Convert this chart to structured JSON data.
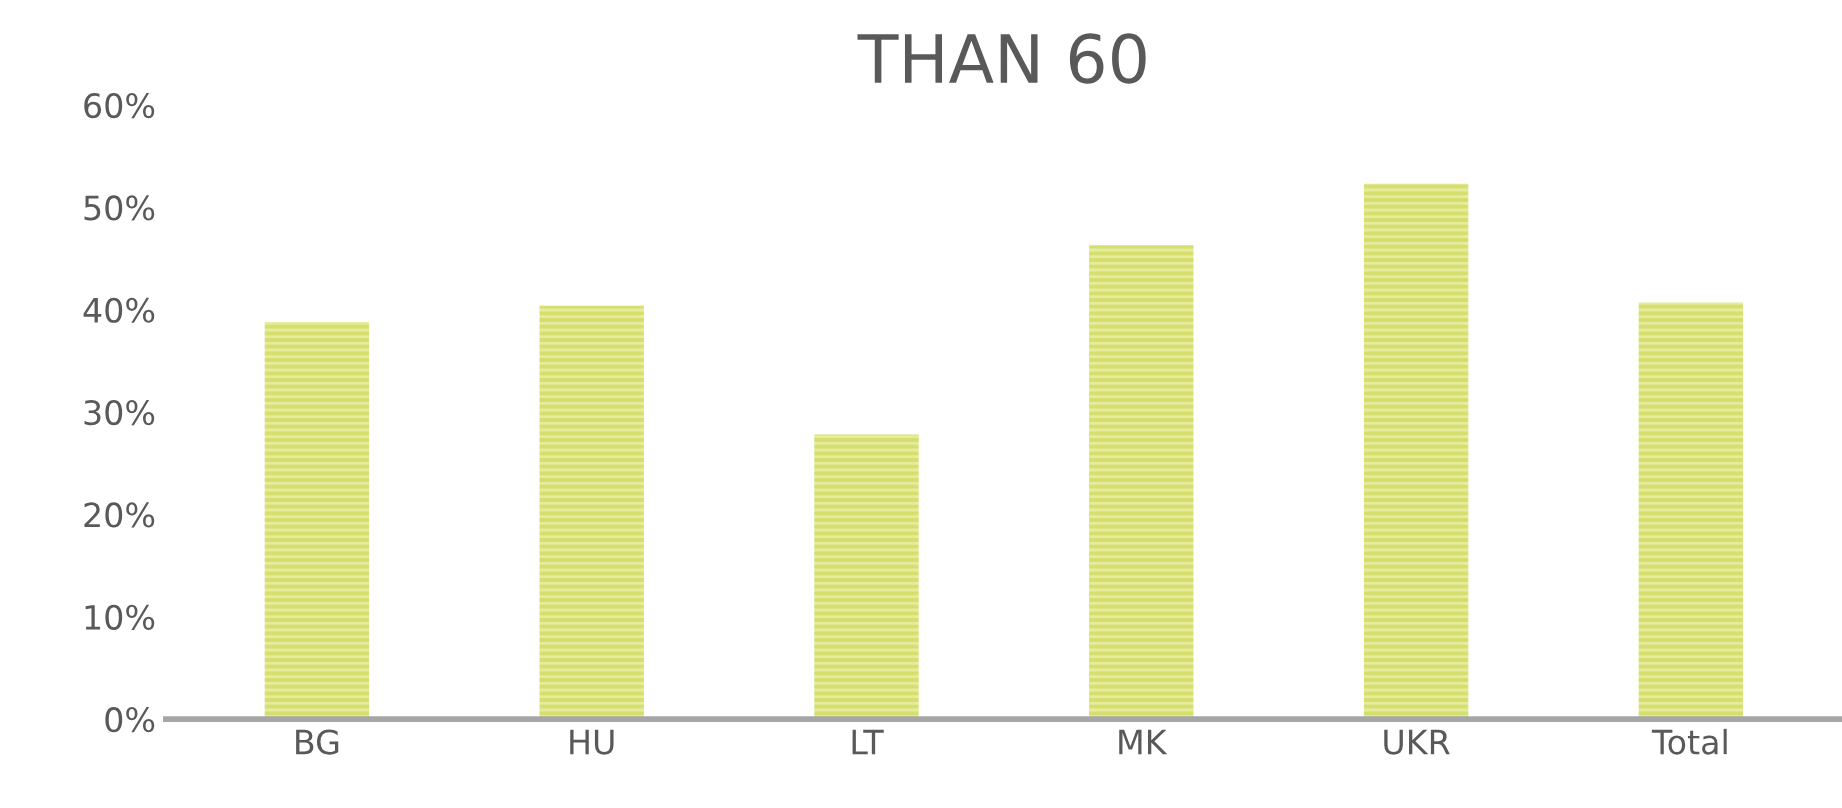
{
  "chart_data": {
    "type": "bar",
    "title": "THAN 60",
    "categories": [
      "BG",
      "HU",
      "LT",
      "MK",
      "UKR",
      "Total"
    ],
    "values": [
      38.8,
      40.4,
      27.8,
      46.3,
      52.3,
      40.7
    ],
    "color": "#d4df6e",
    "ylim": [
      0,
      60
    ],
    "yticks": [
      {
        "value": 0,
        "label": "0%"
      },
      {
        "value": 10,
        "label": "10%"
      },
      {
        "value": 20,
        "label": "20%"
      },
      {
        "value": 30,
        "label": "30%"
      },
      {
        "value": 40,
        "label": "40%"
      },
      {
        "value": 50,
        "label": "50%"
      },
      {
        "value": 60,
        "label": "60%"
      }
    ],
    "grid": false,
    "legend": false
  }
}
